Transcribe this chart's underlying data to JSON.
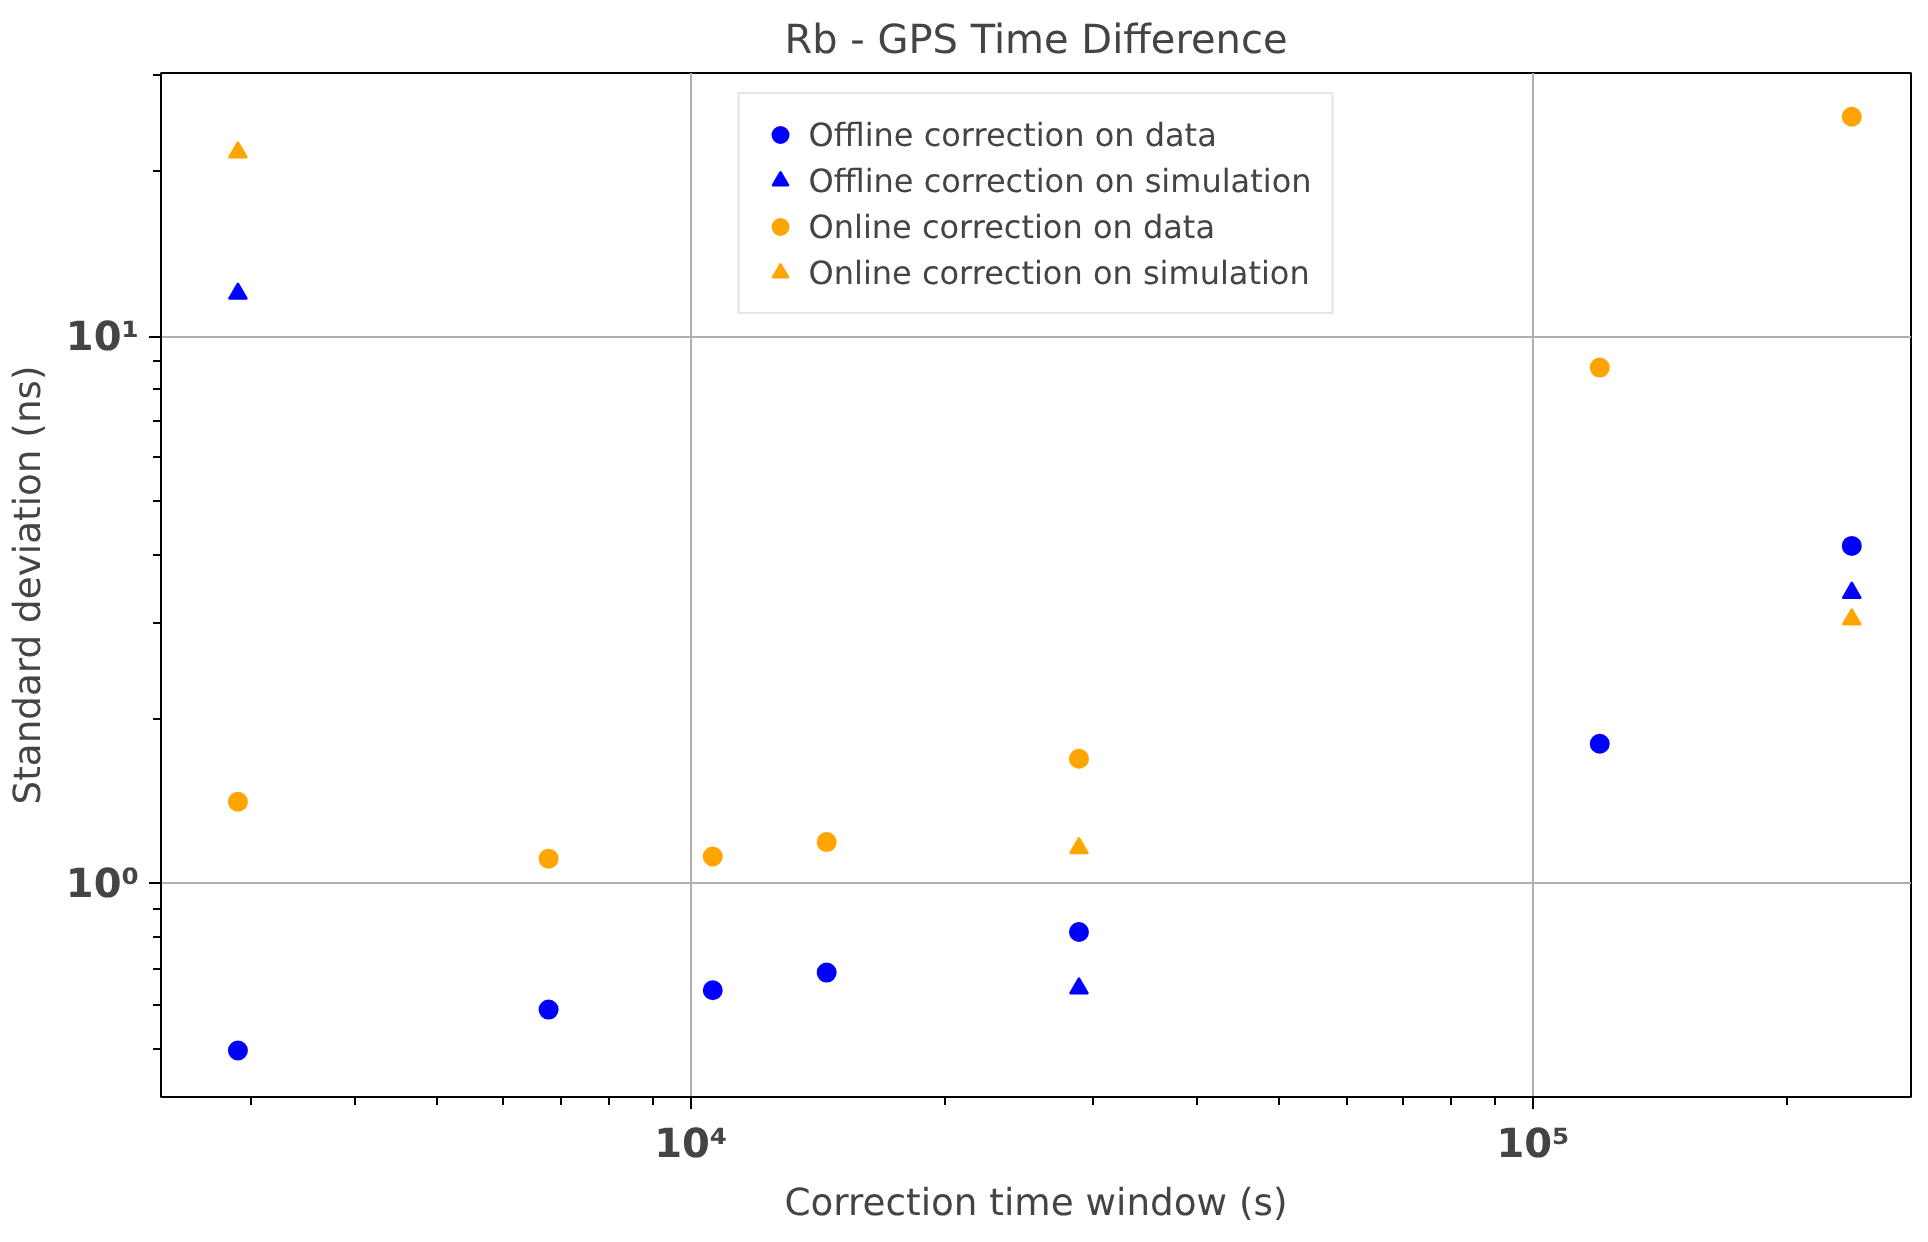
{
  "chart_data": {
    "type": "scatter",
    "title": "Rb - GPS Time Difference",
    "xlabel": "Correction time window (s)",
    "ylabel": "Standard deviation (ns)",
    "log": "xy",
    "grid": true,
    "legend": "top",
    "xlim": [
      2350,
      281000
    ],
    "ylim": [
      0.407,
      30.3
    ],
    "xticks": [
      {
        "value": 10000,
        "label": "10⁴"
      },
      {
        "value": 100000,
        "label": "10⁵"
      }
    ],
    "yticks": [
      {
        "value": 1,
        "label": "10⁰"
      },
      {
        "value": 10,
        "label": "10¹"
      }
    ],
    "series": [
      {
        "name": "Offline correction on data",
        "color": "#0000ff",
        "marker": "circle",
        "x": [
          2900,
          6780,
          10620,
          14500,
          28900,
          120000,
          239000
        ],
        "values": [
          0.495,
          0.588,
          0.638,
          0.687,
          0.815,
          1.8,
          4.14
        ]
      },
      {
        "name": "Offline correction on simulation",
        "color": "#0000ff",
        "marker": "triangle",
        "x": [
          2900,
          28900,
          239000
        ],
        "values": [
          11.97,
          0.643,
          3.4
        ]
      },
      {
        "name": "Online correction on data",
        "color": "#ffa500",
        "marker": "circle",
        "x": [
          2900,
          6780,
          10620,
          14500,
          28900,
          120000,
          239000
        ],
        "values": [
          1.41,
          1.11,
          1.12,
          1.19,
          1.69,
          8.77,
          25.2
        ]
      },
      {
        "name": "Online correction on simulation",
        "color": "#ffa500",
        "marker": "triangle",
        "x": [
          2900,
          28900,
          239000
        ],
        "values": [
          21.7,
          1.16,
          3.04
        ]
      }
    ]
  }
}
